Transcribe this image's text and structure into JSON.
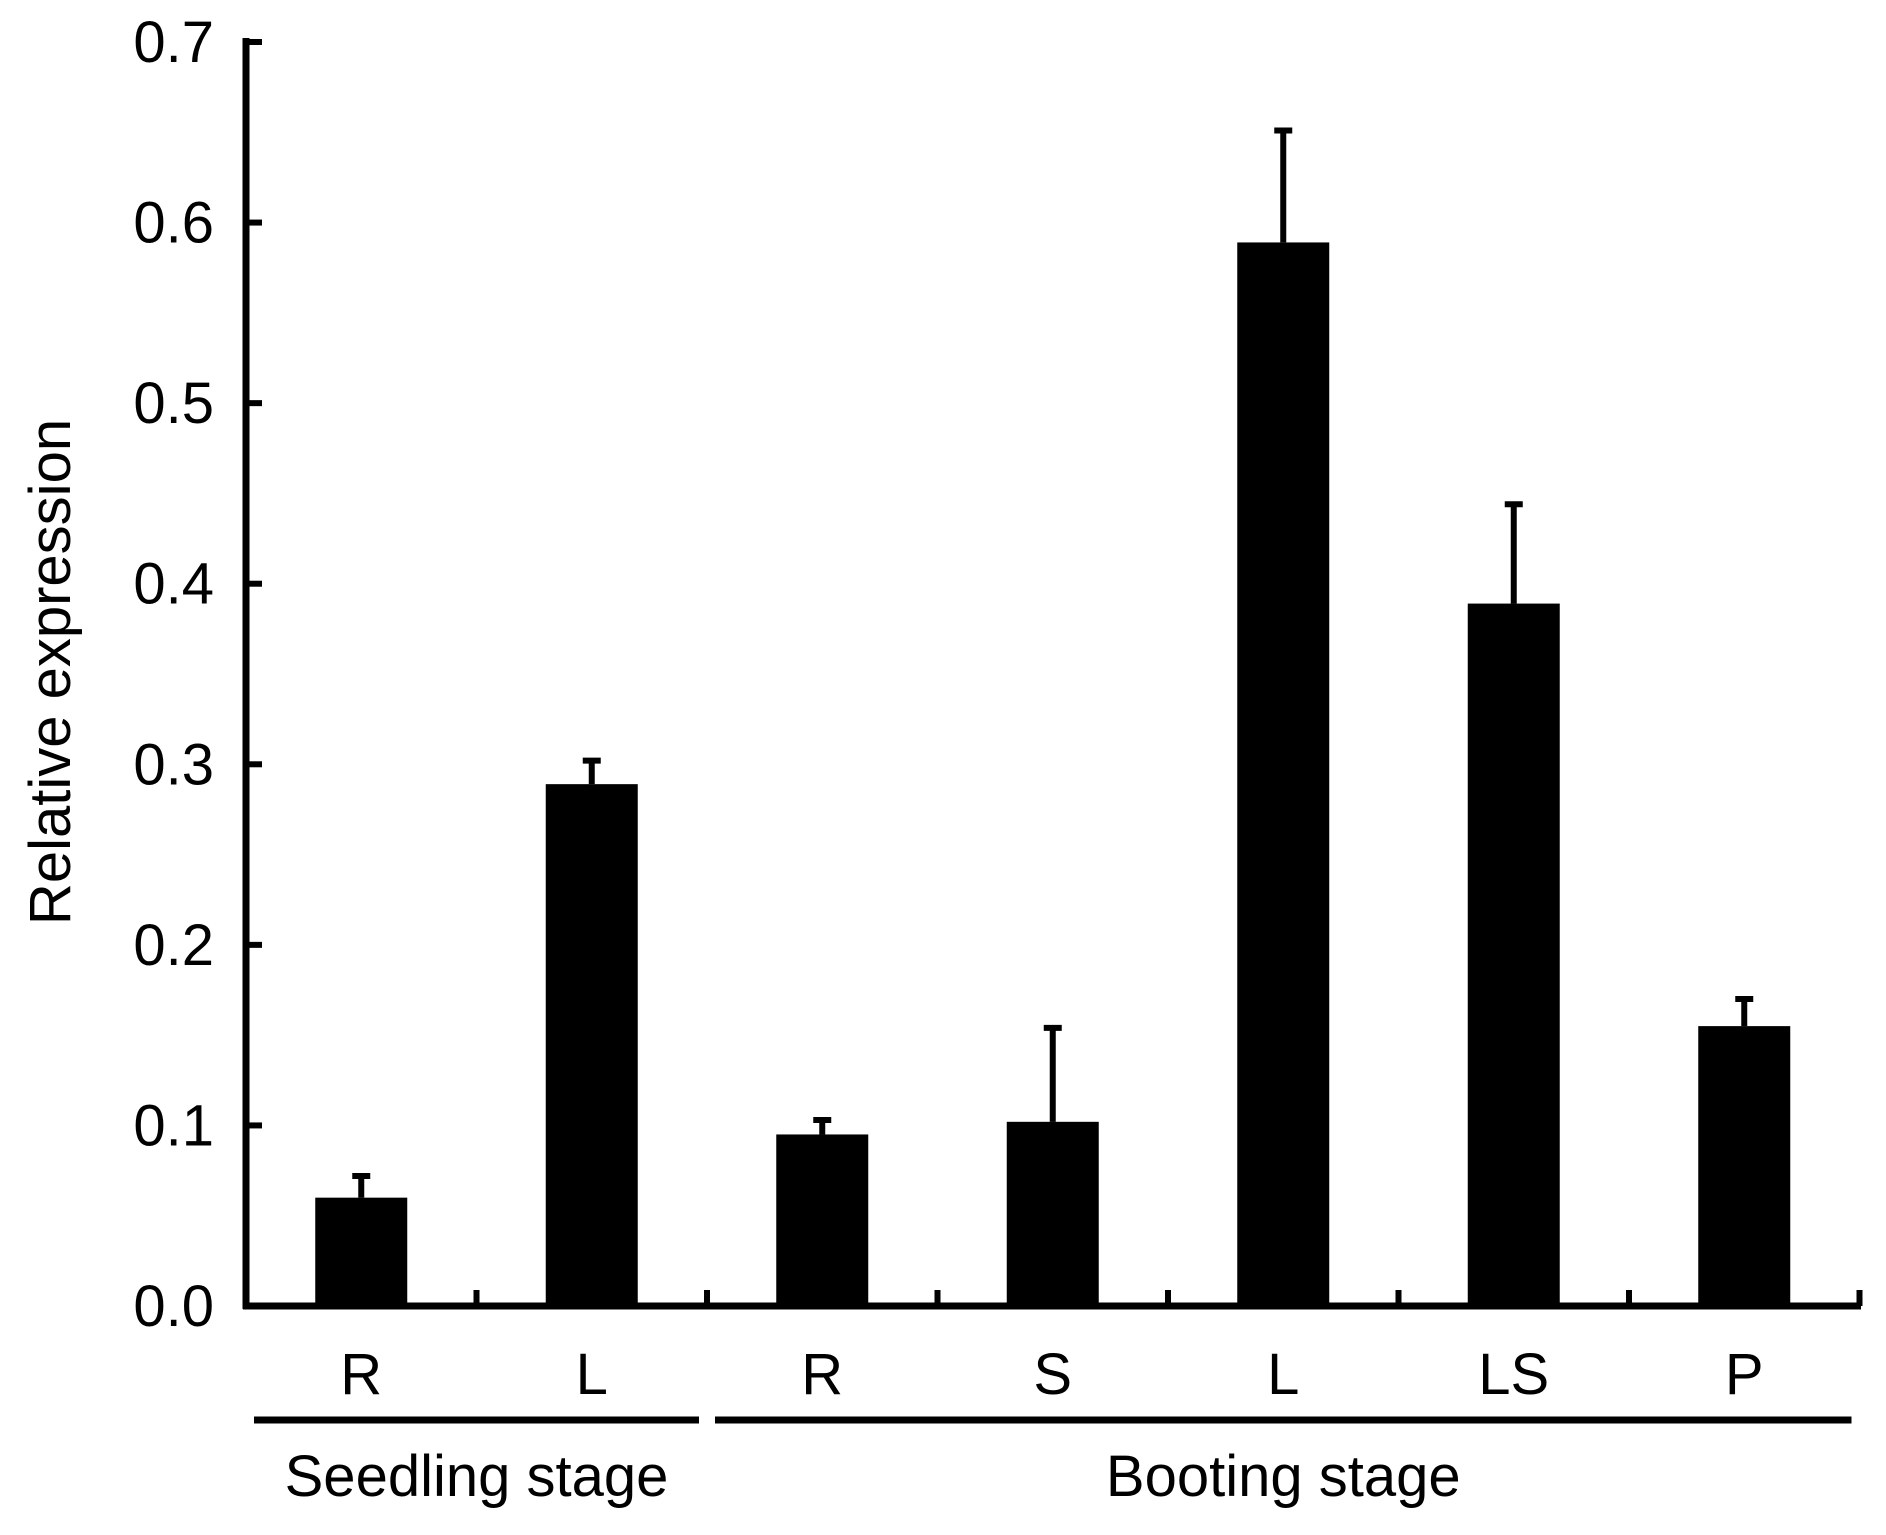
{
  "chart_data": {
    "type": "bar",
    "title": "",
    "xlabel": "",
    "ylabel": "Relative expression",
    "ylim": [
      0,
      0.7
    ],
    "yticks": [
      0.0,
      0.1,
      0.2,
      0.3,
      0.4,
      0.5,
      0.6,
      0.7
    ],
    "ytick_labels": [
      "0.0",
      "0.1",
      "0.2",
      "0.3",
      "0.4",
      "0.5",
      "0.6",
      "0.7"
    ],
    "grid": false,
    "bar_color": "#000000",
    "categories": [
      "R",
      "L",
      "R",
      "S",
      "L",
      "LS",
      "P"
    ],
    "values": [
      0.06,
      0.289,
      0.095,
      0.102,
      0.589,
      0.389,
      0.155
    ],
    "error_upper": [
      0.012,
      0.013,
      0.008,
      0.052,
      0.062,
      0.055,
      0.015
    ],
    "groups": [
      {
        "label": "Seedling stage",
        "start": 0,
        "end": 1
      },
      {
        "label": "Booting stage",
        "start": 2,
        "end": 6
      }
    ]
  }
}
